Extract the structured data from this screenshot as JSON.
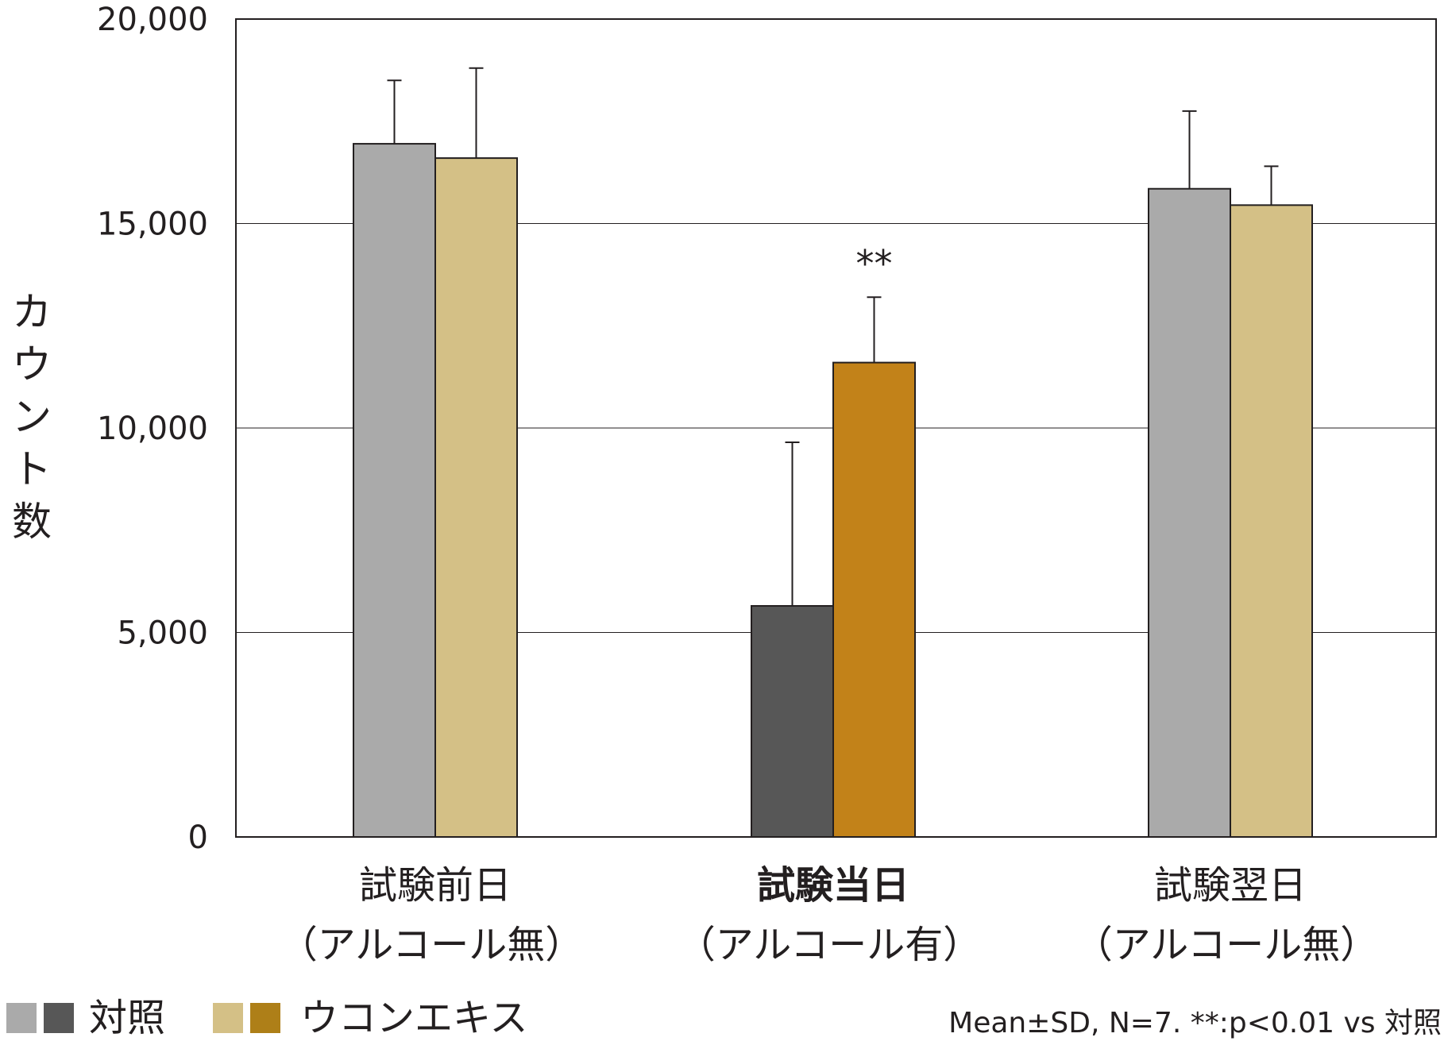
{
  "chart_data": {
    "type": "bar",
    "title": "",
    "ylabel": "カウント数",
    "xlabel": "",
    "ylim": [
      0,
      20000
    ],
    "yticks": [
      0,
      5000,
      10000,
      15000,
      20000
    ],
    "ytick_labels": [
      "0",
      "5,000",
      "10,000",
      "15,000",
      "20,000"
    ],
    "grid": true,
    "categories": [
      {
        "line1": "試験前日",
        "line2": "（アルコール無）",
        "bold": false
      },
      {
        "line1": "試験当日",
        "line2": "（アルコール有）",
        "bold": true
      },
      {
        "line1": "試験翌日",
        "line2": "（アルコール無）",
        "bold": false
      }
    ],
    "series": [
      {
        "name": "対照",
        "values": [
          16950,
          5650,
          15850
        ],
        "error": [
          1550,
          4000,
          1900
        ],
        "colors": [
          "#aaaaaa",
          "#575757",
          "#aaaaaa"
        ]
      },
      {
        "name": "ウコンエキス",
        "values": [
          16600,
          11600,
          15450
        ],
        "error": [
          2200,
          1600,
          950
        ],
        "colors": [
          "#d4c086",
          "#c28219",
          "#d4c086"
        ]
      }
    ],
    "annotations": [
      {
        "text": "**",
        "category_index": 1,
        "series_index": 1
      }
    ],
    "legend": {
      "placement": "bottom-left",
      "items": [
        {
          "label": "対照",
          "swatches": [
            "#aaaaaa",
            "#575757"
          ]
        },
        {
          "label": "ウコンエキス",
          "swatches": [
            "#d4c086",
            "#ae7f18"
          ]
        }
      ]
    },
    "note": "Mean±SD, N=7. **:p<0.01 vs 対照"
  }
}
